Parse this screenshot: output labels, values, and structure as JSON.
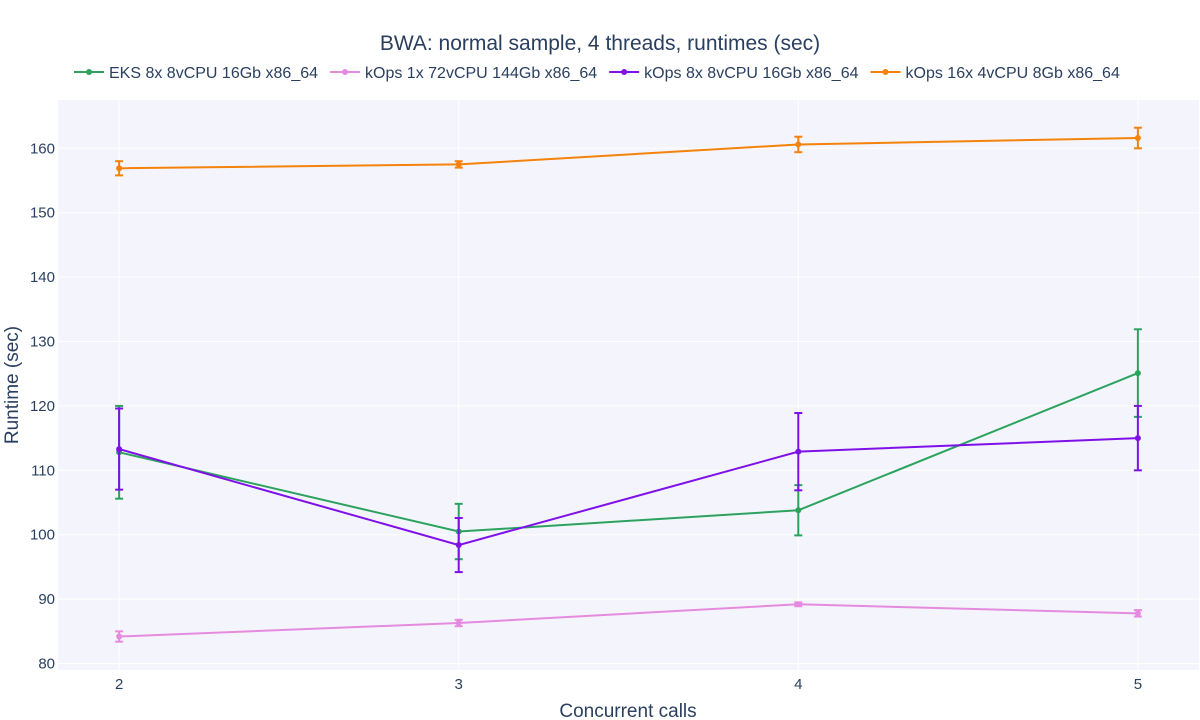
{
  "chart_data": {
    "type": "line",
    "title": "BWA: normal sample, 4 threads, runtimes (sec)",
    "xlabel": "Concurrent calls",
    "ylabel": "Runtime (sec)",
    "x": [
      2,
      3,
      4,
      5
    ],
    "xlim": [
      1.82,
      5.18
    ],
    "ylim": [
      79,
      167.5
    ],
    "x_ticks": [
      2,
      3,
      4,
      5
    ],
    "y_ticks": [
      80,
      90,
      100,
      110,
      120,
      130,
      140,
      150,
      160
    ],
    "grid": true,
    "legend_position": "top",
    "plot_background": "#f4f5fc",
    "series": [
      {
        "name": "EKS 8x 8vCPU 16Gb x86_64",
        "color": "#2ca25f",
        "values": [
          112.8,
          100.5,
          103.8,
          125.1
        ],
        "error": [
          7.2,
          4.3,
          3.9,
          6.8
        ]
      },
      {
        "name": "kOps 1x 72vCPU 144Gb x86_64",
        "color": "#e68ae0",
        "values": [
          84.2,
          86.3,
          89.2,
          87.8
        ],
        "error": [
          0.8,
          0.5,
          0.3,
          0.5
        ]
      },
      {
        "name": "kOps 8x 8vCPU 16Gb x86_64",
        "color": "#7f10e8",
        "values": [
          113.3,
          98.4,
          112.9,
          115.0
        ],
        "error": [
          6.3,
          4.2,
          6.0,
          5.0
        ]
      },
      {
        "name": "kOps 16x 4vCPU 8Gb x86_64",
        "color": "#f5820b",
        "values": [
          156.9,
          157.5,
          160.6,
          161.6
        ],
        "error": [
          1.1,
          0.5,
          1.2,
          1.6
        ]
      }
    ]
  }
}
